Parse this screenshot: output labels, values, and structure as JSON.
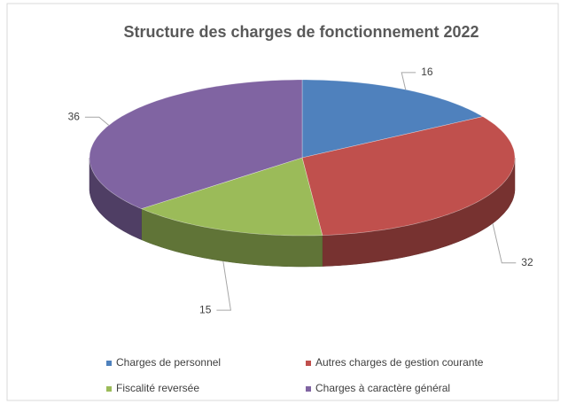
{
  "chart_data": {
    "type": "pie3d",
    "title": "Structure des charges de fonctionnement 2022",
    "categories": [
      "Charges de personnel",
      "Autres charges de gestion courante",
      "Fiscalité reversée",
      "Charges à caractère général"
    ],
    "values": [
      16,
      32,
      15,
      36
    ],
    "colors": [
      "#4f81bd",
      "#c0504d",
      "#9bbb59",
      "#8064a2"
    ],
    "legend": "bottom"
  }
}
